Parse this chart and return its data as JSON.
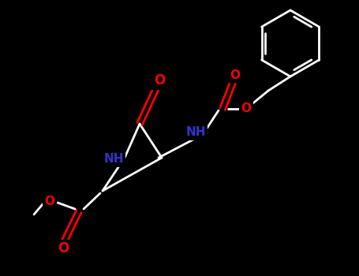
{
  "background_color": "#000000",
  "bond_color": "#ffffff",
  "O_color": "#ff0000",
  "N_color": "#3333cc",
  "figsize": [
    4.55,
    3.5
  ],
  "dpi": 100,
  "xlim": [
    0,
    455
  ],
  "ylim": [
    350,
    0
  ]
}
